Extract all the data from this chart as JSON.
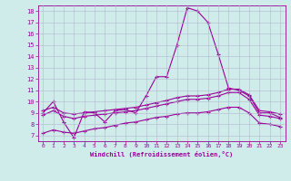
{
  "xlabel": "Windchill (Refroidissement éolien,°C)",
  "ylabel": "",
  "bg_color": "#d0ecea",
  "grid_color": "#b0b8cc",
  "line_color": "#990099",
  "xlim": [
    -0.5,
    23.5
  ],
  "ylim": [
    6.5,
    18.5
  ],
  "xticks": [
    0,
    1,
    2,
    3,
    4,
    5,
    6,
    7,
    8,
    9,
    10,
    11,
    12,
    13,
    14,
    15,
    16,
    17,
    18,
    19,
    20,
    21,
    22,
    23
  ],
  "yticks": [
    7,
    8,
    9,
    10,
    11,
    12,
    13,
    14,
    15,
    16,
    17,
    18
  ],
  "line1_x": [
    0,
    1,
    2,
    3,
    4,
    5,
    6,
    7,
    8,
    9,
    10,
    11,
    12,
    13,
    14,
    15,
    16,
    17,
    18,
    19,
    20,
    21,
    22,
    23
  ],
  "line1_y": [
    9.0,
    10.0,
    8.2,
    6.8,
    9.1,
    9.0,
    8.2,
    9.2,
    9.3,
    9.0,
    10.5,
    12.2,
    12.2,
    15.0,
    18.3,
    18.0,
    17.0,
    14.2,
    11.2,
    11.0,
    10.5,
    9.0,
    9.0,
    8.6
  ],
  "line2_x": [
    0,
    1,
    2,
    3,
    4,
    5,
    6,
    7,
    8,
    9,
    10,
    11,
    12,
    13,
    14,
    15,
    16,
    17,
    18,
    19,
    20,
    21,
    22,
    23
  ],
  "line2_y": [
    9.2,
    9.5,
    9.0,
    8.9,
    9.0,
    9.1,
    9.2,
    9.3,
    9.4,
    9.5,
    9.7,
    9.9,
    10.1,
    10.35,
    10.5,
    10.5,
    10.6,
    10.8,
    11.1,
    11.1,
    10.6,
    9.2,
    9.1,
    8.9
  ],
  "line3_x": [
    0,
    1,
    2,
    3,
    4,
    5,
    6,
    7,
    8,
    9,
    10,
    11,
    12,
    13,
    14,
    15,
    16,
    17,
    18,
    19,
    20,
    21,
    22,
    23
  ],
  "line3_y": [
    8.8,
    9.2,
    8.7,
    8.5,
    8.7,
    8.8,
    8.9,
    9.0,
    9.1,
    9.2,
    9.4,
    9.6,
    9.8,
    10.0,
    10.2,
    10.2,
    10.3,
    10.5,
    10.8,
    10.8,
    10.2,
    8.8,
    8.7,
    8.5
  ],
  "line4_x": [
    0,
    1,
    2,
    3,
    4,
    5,
    6,
    7,
    8,
    9,
    10,
    11,
    12,
    13,
    14,
    15,
    16,
    17,
    18,
    19,
    20,
    21,
    22,
    23
  ],
  "line4_y": [
    7.2,
    7.5,
    7.3,
    7.2,
    7.4,
    7.6,
    7.7,
    7.9,
    8.1,
    8.2,
    8.4,
    8.6,
    8.7,
    8.9,
    9.0,
    9.0,
    9.1,
    9.3,
    9.5,
    9.5,
    9.0,
    8.1,
    8.0,
    7.8
  ]
}
